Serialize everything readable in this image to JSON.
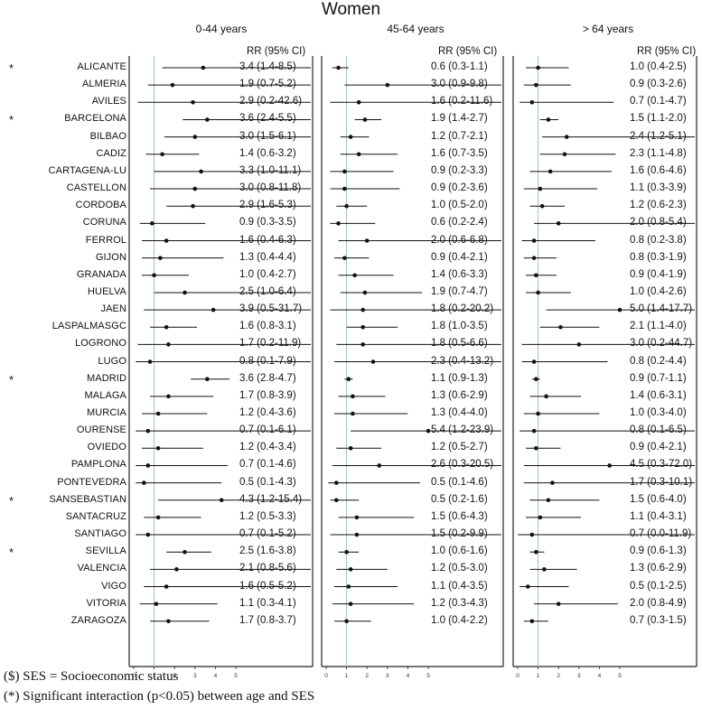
{
  "title": "Women",
  "rr_header": "RR (95% CI)",
  "footnotes": [
    "($) SES = Socioeconomic status",
    "(*) Significant interaction (p<0.05) between age and SES"
  ],
  "chart_data": {
    "type": "forest",
    "title": "Women",
    "x_ticks": [
      "0",
      "1",
      "2",
      "3",
      "4",
      "5"
    ],
    "xlim": [
      0,
      5
    ],
    "reference_line": 1,
    "categories": [
      "ALICANTE",
      "ALMERIA",
      "AVILES",
      "BARCELONA",
      "BILBAO",
      "CADIZ",
      "CARTAGENA-LU",
      "CASTELLON",
      "CORDOBA",
      "CORUNA",
      "FERROL",
      "GIJON",
      "GRANADA",
      "HUELVA",
      "JAEN",
      "LASPALMASGC",
      "LOGRONO",
      "LUGO",
      "MADRID",
      "MALAGA",
      "MURCIA",
      "OURENSE",
      "OVIEDO",
      "PAMPLONA",
      "PONTEVEDRA",
      "SANSEBASTIAN",
      "SANTACRUZ",
      "SANTIAGO",
      "SEVILLA",
      "VALENCIA",
      "VIGO",
      "VITORIA",
      "ZARAGOZA"
    ],
    "significant": [
      true,
      false,
      false,
      true,
      false,
      false,
      false,
      false,
      false,
      false,
      false,
      false,
      false,
      false,
      false,
      false,
      false,
      false,
      true,
      false,
      false,
      false,
      false,
      false,
      false,
      true,
      false,
      false,
      true,
      false,
      false,
      false,
      false
    ],
    "significant_marker": "*",
    "panels": [
      {
        "name": "0-44 years",
        "rr": [
          3.4,
          1.9,
          2.9,
          3.6,
          3.0,
          1.4,
          3.3,
          3.0,
          2.9,
          0.9,
          1.6,
          1.3,
          1.0,
          2.5,
          3.9,
          1.6,
          1.7,
          0.8,
          3.6,
          1.7,
          1.2,
          0.7,
          1.2,
          0.7,
          0.5,
          4.3,
          1.2,
          0.7,
          2.5,
          2.1,
          1.6,
          1.1,
          1.7
        ],
        "lower": [
          1.4,
          0.7,
          0.2,
          2.4,
          1.5,
          0.6,
          1.0,
          0.8,
          1.6,
          0.3,
          0.4,
          0.4,
          0.4,
          1.0,
          0.5,
          0.8,
          0.2,
          0.1,
          2.8,
          0.8,
          0.4,
          0.1,
          0.4,
          0.1,
          0.1,
          1.2,
          0.5,
          0.1,
          1.6,
          0.8,
          0.5,
          0.3,
          0.8
        ],
        "upper": [
          8.5,
          5.2,
          42.6,
          5.5,
          6.1,
          3.2,
          11.1,
          11.8,
          5.3,
          3.5,
          6.3,
          4.4,
          2.7,
          6.4,
          31.7,
          3.1,
          11.9,
          7.9,
          4.7,
          3.9,
          3.6,
          6.1,
          3.4,
          4.6,
          4.3,
          15.4,
          3.3,
          5.2,
          3.8,
          5.6,
          5.2,
          4.1,
          3.7
        ],
        "labels": [
          "3.4 (1.4-8.5)",
          "1.9 (0.7-5.2)",
          "2.9 (0.2-42.6)",
          "3.6 (2.4-5.5)",
          "3.0 (1.5-6.1)",
          "1.4 (0.6-3.2)",
          "3.3 (1.0-11.1)",
          "3.0 (0.8-11.8)",
          "2.9 (1.6-5.3)",
          "0.9 (0.3-3.5)",
          "1.6 (0.4-6.3)",
          "1.3 (0.4-4.4)",
          "1.0 (0.4-2.7)",
          "2.5 (1.0-6.4)",
          "3.9 (0.5-31.7)",
          "1.6 (0.8-3.1)",
          "1.7 (0.2-11.9)",
          "0.8 (0.1-7.9)",
          "3.6 (2.8-4.7)",
          "1.7 (0.8-3.9)",
          "1.2 (0.4-3.6)",
          "0.7 (0.1-6.1)",
          "1.2 (0.4-3.4)",
          "0.7 (0.1-4.6)",
          "0.5 (0.1-4.3)",
          "4.3 (1.2-15.4)",
          "1.2 (0.5-3.3)",
          "0.7 (0.1-5.2)",
          "2.5 (1.6-3.8)",
          "2.1 (0.8-5.6)",
          "1.6 (0.5-5.2)",
          "1.1 (0.3-4.1)",
          "1.7 (0.8-3.7)"
        ]
      },
      {
        "name": "45-64 years",
        "rr": [
          0.6,
          3.0,
          1.6,
          1.9,
          1.2,
          1.6,
          0.9,
          0.9,
          1.0,
          0.6,
          2.0,
          0.9,
          1.4,
          1.9,
          1.8,
          1.8,
          1.8,
          2.3,
          1.1,
          1.3,
          1.3,
          5.4,
          1.2,
          2.6,
          0.5,
          0.5,
          1.5,
          1.5,
          1.0,
          1.2,
          1.1,
          1.2,
          1.0
        ],
        "lower": [
          0.3,
          0.9,
          0.2,
          1.4,
          0.7,
          0.7,
          0.2,
          0.2,
          0.5,
          0.2,
          0.6,
          0.4,
          0.6,
          0.7,
          0.2,
          1.0,
          0.5,
          0.4,
          0.9,
          0.6,
          0.4,
          1.2,
          0.5,
          0.3,
          0.1,
          0.2,
          0.6,
          0.2,
          0.6,
          0.5,
          0.4,
          0.3,
          0.4
        ],
        "upper": [
          1.1,
          9.8,
          11.6,
          2.7,
          2.1,
          3.5,
          3.3,
          3.6,
          2.0,
          2.4,
          6.8,
          2.1,
          3.3,
          4.7,
          20.2,
          3.5,
          6.6,
          13.2,
          1.3,
          2.9,
          4.0,
          23.9,
          2.7,
          20.5,
          4.6,
          1.6,
          4.3,
          9.9,
          1.6,
          3.0,
          3.5,
          4.3,
          2.2
        ],
        "labels": [
          "0.6 (0.3-1.1)",
          "3.0 (0.9-9.8)",
          "1.6 (0.2-11.6)",
          "1.9 (1.4-2.7)",
          "1.2 (0.7-2.1)",
          "1.6 (0.7-3.5)",
          "0.9 (0.2-3.3)",
          "0.9 (0.2-3.6)",
          "1.0 (0.5-2.0)",
          "0.6 (0.2-2.4)",
          "2.0 (0.6-6.8)",
          "0.9 (0.4-2.1)",
          "1.4 (0.6-3.3)",
          "1.9 (0.7-4.7)",
          "1.8 (0.2-20.2)",
          "1.8 (1.0-3.5)",
          "1.8 (0.5-6.6)",
          "2.3 (0.4-13.2)",
          "1.1 (0.9-1.3)",
          "1.3 (0.6-2.9)",
          "1.3 (0.4-4.0)",
          "5.4 (1.2-23.9)",
          "1.2 (0.5-2.7)",
          "2.6 (0.3-20.5)",
          "0.5 (0.1-4.6)",
          "0.5 (0.2-1.6)",
          "1.5 (0.6-4.3)",
          "1.5 (0.2-9.9)",
          "1.0 (0.6-1.6)",
          "1.2 (0.5-3.0)",
          "1.1 (0.4-3.5)",
          "1.2 (0.3-4.3)",
          "1.0 (0.4-2.2)"
        ]
      },
      {
        "name": "> 64 years",
        "rr": [
          1.0,
          0.9,
          0.7,
          1.5,
          2.4,
          2.3,
          1.6,
          1.1,
          1.2,
          2.0,
          0.8,
          0.8,
          0.9,
          1.0,
          5.0,
          2.1,
          3.0,
          0.8,
          0.9,
          1.4,
          1.0,
          0.8,
          0.9,
          4.5,
          1.7,
          1.5,
          1.1,
          0.7,
          0.9,
          1.3,
          0.5,
          2.0,
          0.7
        ],
        "lower": [
          0.4,
          0.3,
          0.1,
          1.1,
          1.2,
          1.1,
          0.6,
          0.3,
          0.6,
          0.8,
          0.2,
          0.3,
          0.4,
          0.4,
          1.4,
          1.1,
          0.2,
          0.2,
          0.7,
          0.6,
          0.3,
          0.1,
          0.4,
          0.3,
          0.3,
          0.6,
          0.4,
          0.0,
          0.6,
          0.6,
          0.1,
          0.8,
          0.3
        ],
        "upper": [
          2.5,
          2.6,
          4.7,
          2.0,
          5.1,
          4.8,
          4.6,
          3.9,
          2.3,
          5.4,
          3.8,
          1.9,
          1.9,
          2.6,
          17.7,
          4.0,
          44.7,
          4.4,
          1.1,
          3.1,
          4.0,
          6.5,
          2.1,
          72.0,
          10.1,
          4.0,
          3.1,
          11.9,
          1.3,
          2.9,
          2.5,
          4.9,
          1.5
        ],
        "labels": [
          "1.0 (0.4-2.5)",
          "0.9 (0.3-2.6)",
          "0.7 (0.1-4.7)",
          "1.5 (1.1-2.0)",
          "2.4 (1.2-5.1)",
          "2.3 (1.1-4.8)",
          "1.6 (0.6-4.6)",
          "1.1 (0.3-3.9)",
          "1.2 (0.6-2.3)",
          "2.0 (0.8-5.4)",
          "0.8 (0.2-3.8)",
          "0.8 (0.3-1.9)",
          "0.9 (0.4-1.9)",
          "1.0 (0.4-2.6)",
          "5.0 (1.4-17.7)",
          "2.1 (1.1-4.0)",
          "3.0 (0.2-44.7)",
          "0.8 (0.2-4.4)",
          "0.9 (0.7-1.1)",
          "1.4 (0.6-3.1)",
          "1.0 (0.3-4.0)",
          "0.8 (0.1-6.5)",
          "0.9 (0.4-2.1)",
          "4.5 (0.3-72.0)",
          "1.7 (0.3-10.1)",
          "1.5 (0.6-4.0)",
          "1.1 (0.4-3.1)",
          "0.7 (0.0-11.9)",
          "0.9 (0.6-1.3)",
          "1.3 (0.6-2.9)",
          "0.5 (0.1-2.5)",
          "2.0 (0.8-4.9)",
          "0.7 (0.3-1.5)"
        ]
      }
    ]
  }
}
